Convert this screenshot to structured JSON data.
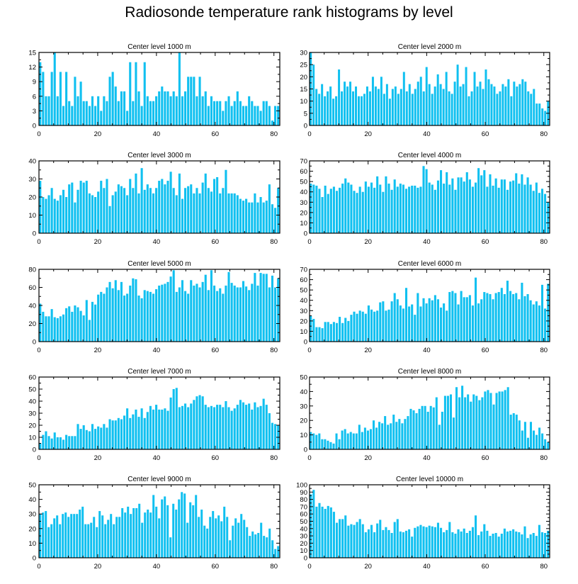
{
  "title": "Radiosonde temperature rank histograms by level",
  "colors": {
    "bar": "#10c0f0",
    "axis": "#000000",
    "background": "#ffffff"
  },
  "chart_data": [
    {
      "type": "bar",
      "title": "Center level 1000 m",
      "xlim": [
        0,
        82
      ],
      "ylim": [
        0,
        15
      ],
      "xticks": [
        0,
        20,
        40,
        60,
        80
      ],
      "yticks": [
        0,
        3,
        6,
        9,
        12,
        15
      ],
      "values": [
        13,
        11,
        6,
        6,
        11,
        15,
        6,
        11,
        4,
        11,
        5,
        4,
        10,
        6,
        9,
        5,
        5,
        4,
        6,
        4,
        6,
        3,
        6,
        5,
        10,
        11,
        8,
        5,
        7,
        7,
        3,
        13,
        5,
        13,
        7,
        4,
        13,
        6,
        5,
        5,
        6,
        7,
        8,
        7,
        7,
        6,
        7,
        6,
        15,
        6,
        7,
        10,
        10,
        10,
        6,
        10,
        6,
        7,
        4,
        6,
        5,
        5,
        5,
        3,
        5,
        6,
        4,
        5,
        7,
        5,
        4,
        4,
        6,
        5,
        4,
        4,
        3,
        5,
        5,
        4,
        1,
        4,
        4
      ]
    },
    {
      "type": "bar",
      "title": "Center level 2000 m",
      "xlim": [
        0,
        82
      ],
      "ylim": [
        0,
        30
      ],
      "xticks": [
        0,
        20,
        40,
        60,
        80
      ],
      "yticks": [
        0,
        5,
        10,
        15,
        20,
        25,
        30
      ],
      "values": [
        30,
        25,
        15,
        13,
        17,
        12,
        14,
        16,
        11,
        12,
        23,
        14,
        18,
        16,
        18,
        14,
        16,
        12,
        12,
        13,
        16,
        14,
        20,
        16,
        15,
        20,
        13,
        17,
        11,
        15,
        16,
        13,
        15,
        22,
        14,
        17,
        13,
        15,
        18,
        20,
        14,
        24,
        17,
        13,
        16,
        21,
        17,
        15,
        22,
        14,
        13,
        18,
        25,
        16,
        17,
        24,
        12,
        14,
        22,
        16,
        18,
        15,
        23,
        19,
        17,
        16,
        13,
        14,
        17,
        16,
        19,
        12,
        18,
        16,
        17,
        19,
        18,
        14,
        13,
        15,
        9,
        9,
        7,
        6,
        10
      ]
    },
    {
      "type": "bar",
      "title": "Center level 3000 m",
      "xlim": [
        0,
        82
      ],
      "ylim": [
        0,
        40
      ],
      "xticks": [
        0,
        20,
        40,
        60,
        80
      ],
      "yticks": [
        0,
        10,
        20,
        30,
        40
      ],
      "values": [
        29,
        20,
        19,
        21,
        25,
        19,
        18,
        21,
        24,
        20,
        27,
        28,
        17,
        24,
        29,
        28,
        29,
        22,
        21,
        20,
        23,
        29,
        25,
        30,
        15,
        21,
        23,
        27,
        26,
        25,
        21,
        30,
        25,
        33,
        22,
        36,
        24,
        27,
        25,
        22,
        25,
        29,
        30,
        27,
        29,
        34,
        25,
        21,
        33,
        19,
        25,
        26,
        27,
        22,
        25,
        22,
        28,
        33,
        25,
        23,
        30,
        31,
        22,
        25,
        35,
        22,
        22,
        22,
        21,
        19,
        18,
        19,
        17,
        17,
        22,
        17,
        20,
        17,
        18,
        27,
        16,
        14,
        25
      ]
    },
    {
      "type": "bar",
      "title": "Center level 4000 m",
      "xlim": [
        0,
        82
      ],
      "ylim": [
        0,
        70
      ],
      "xticks": [
        0,
        20,
        40,
        60,
        80
      ],
      "yticks": [
        0,
        10,
        20,
        30,
        40,
        50,
        60,
        70
      ],
      "values": [
        48,
        47,
        46,
        43,
        35,
        46,
        38,
        43,
        45,
        41,
        44,
        48,
        53,
        49,
        47,
        41,
        39,
        45,
        40,
        50,
        45,
        49,
        44,
        55,
        47,
        40,
        55,
        48,
        42,
        52,
        45,
        48,
        47,
        43,
        45,
        46,
        46,
        44,
        45,
        65,
        62,
        49,
        47,
        42,
        51,
        61,
        48,
        59,
        47,
        53,
        42,
        54,
        54,
        50,
        59,
        52,
        45,
        49,
        63,
        56,
        61,
        45,
        57,
        46,
        53,
        44,
        52,
        52,
        42,
        50,
        51,
        58,
        48,
        57,
        47,
        54,
        47,
        41,
        49,
        39,
        43,
        38,
        30
      ]
    },
    {
      "type": "bar",
      "title": "Center level 5000 m",
      "xlim": [
        0,
        82
      ],
      "ylim": [
        0,
        80
      ],
      "xticks": [
        0,
        20,
        40,
        60,
        80
      ],
      "yticks": [
        0,
        20,
        40,
        60,
        80
      ],
      "values": [
        42,
        33,
        28,
        28,
        36,
        27,
        26,
        28,
        30,
        37,
        39,
        33,
        40,
        38,
        34,
        29,
        46,
        24,
        44,
        41,
        52,
        55,
        53,
        60,
        66,
        59,
        68,
        57,
        66,
        51,
        53,
        62,
        70,
        69,
        51,
        48,
        57,
        56,
        55,
        53,
        58,
        62,
        63,
        64,
        66,
        72,
        79,
        55,
        60,
        68,
        56,
        53,
        68,
        62,
        64,
        60,
        66,
        74,
        57,
        79,
        62,
        56,
        59,
        53,
        62,
        77,
        65,
        62,
        60,
        60,
        67,
        61,
        57,
        64,
        76,
        62,
        76,
        75,
        75,
        60,
        73,
        60,
        70
      ]
    },
    {
      "type": "bar",
      "title": "Center level 6000 m",
      "xlim": [
        0,
        82
      ],
      "ylim": [
        0,
        70
      ],
      "xticks": [
        0,
        20,
        40,
        60,
        80
      ],
      "yticks": [
        0,
        10,
        20,
        30,
        40,
        50,
        60,
        70
      ],
      "values": [
        25,
        22,
        14,
        14,
        13,
        19,
        19,
        17,
        19,
        18,
        24,
        18,
        23,
        20,
        26,
        29,
        27,
        30,
        29,
        27,
        35,
        31,
        29,
        30,
        38,
        39,
        30,
        31,
        39,
        47,
        41,
        35,
        32,
        52,
        34,
        36,
        26,
        47,
        34,
        42,
        37,
        42,
        40,
        45,
        41,
        33,
        37,
        30,
        48,
        49,
        47,
        36,
        49,
        43,
        43,
        45,
        35,
        62,
        37,
        41,
        48,
        47,
        46,
        41,
        47,
        48,
        52,
        46,
        59,
        49,
        46,
        47,
        41,
        57,
        44,
        46,
        40,
        36,
        39,
        35,
        55,
        32,
        56
      ]
    },
    {
      "type": "bar",
      "title": "Center level 7000 m",
      "xlim": [
        0,
        82
      ],
      "ylim": [
        0,
        60
      ],
      "xticks": [
        0,
        20,
        40,
        60,
        80
      ],
      "yticks": [
        0,
        10,
        20,
        30,
        40,
        50,
        60
      ],
      "values": [
        5,
        12,
        15,
        11,
        9,
        14,
        10,
        10,
        8,
        12,
        11,
        11,
        11,
        21,
        17,
        20,
        16,
        15,
        21,
        17,
        19,
        18,
        21,
        18,
        25,
        24,
        24,
        26,
        25,
        28,
        34,
        26,
        29,
        33,
        27,
        34,
        26,
        31,
        36,
        33,
        37,
        33,
        33,
        34,
        32,
        43,
        50,
        51,
        35,
        36,
        38,
        35,
        38,
        41,
        44,
        45,
        44,
        37,
        35,
        36,
        35,
        37,
        37,
        35,
        40,
        35,
        32,
        34,
        37,
        41,
        39,
        37,
        38,
        33,
        39,
        35,
        36,
        42,
        37,
        30,
        22,
        21,
        20
      ]
    },
    {
      "type": "bar",
      "title": "Center level 8000 m",
      "xlim": [
        0,
        82
      ],
      "ylim": [
        0,
        50
      ],
      "xticks": [
        0,
        20,
        40,
        60,
        80
      ],
      "yticks": [
        0,
        10,
        20,
        30,
        40,
        50
      ],
      "values": [
        12,
        11,
        10,
        11,
        7,
        7,
        6,
        5,
        4,
        11,
        7,
        13,
        14,
        11,
        12,
        11,
        11,
        17,
        12,
        15,
        13,
        14,
        20,
        15,
        19,
        18,
        23,
        17,
        18,
        24,
        19,
        21,
        18,
        21,
        23,
        28,
        27,
        25,
        28,
        30,
        30,
        26,
        30,
        29,
        36,
        17,
        26,
        37,
        37,
        38,
        22,
        43,
        36,
        44,
        36,
        38,
        33,
        38,
        37,
        34,
        36,
        40,
        41,
        39,
        31,
        39,
        40,
        40,
        41,
        43,
        24,
        25,
        24,
        20,
        13,
        19,
        8,
        19,
        13,
        10,
        15,
        11,
        7,
        5
      ]
    },
    {
      "type": "bar",
      "title": "Center level 9000 m",
      "xlim": [
        0,
        82
      ],
      "ylim": [
        0,
        50
      ],
      "xticks": [
        0,
        20,
        40,
        60,
        80
      ],
      "yticks": [
        0,
        10,
        20,
        30,
        40,
        50
      ],
      "values": [
        30,
        31,
        32,
        21,
        23,
        27,
        29,
        23,
        30,
        31,
        28,
        30,
        30,
        30,
        33,
        35,
        23,
        23,
        24,
        28,
        21,
        32,
        29,
        23,
        26,
        30,
        23,
        28,
        28,
        34,
        31,
        35,
        30,
        34,
        34,
        37,
        24,
        31,
        33,
        31,
        43,
        35,
        27,
        40,
        42,
        36,
        14,
        37,
        33,
        40,
        45,
        44,
        24,
        38,
        36,
        43,
        28,
        33,
        22,
        20,
        28,
        32,
        27,
        29,
        25,
        35,
        28,
        12,
        22,
        27,
        24,
        30,
        26,
        21,
        15,
        18,
        16,
        17,
        24,
        15,
        14,
        20,
        12,
        6,
        8
      ]
    },
    {
      "type": "bar",
      "title": "Center level 10000 m",
      "xlim": [
        0,
        82
      ],
      "ylim": [
        0,
        100
      ],
      "xticks": [
        0,
        20,
        40,
        60,
        80
      ],
      "yticks": [
        0,
        10,
        20,
        30,
        40,
        50,
        60,
        70,
        80,
        90,
        100
      ],
      "values": [
        87,
        93,
        70,
        75,
        70,
        67,
        71,
        69,
        63,
        48,
        53,
        53,
        58,
        44,
        46,
        45,
        49,
        53,
        46,
        35,
        39,
        45,
        35,
        47,
        52,
        38,
        42,
        38,
        34,
        49,
        53,
        36,
        35,
        37,
        39,
        29,
        41,
        43,
        45,
        43,
        42,
        44,
        43,
        42,
        48,
        41,
        35,
        38,
        49,
        35,
        33,
        39,
        36,
        40,
        34,
        37,
        42,
        58,
        31,
        36,
        46,
        37,
        30,
        33,
        34,
        29,
        33,
        40,
        36,
        37,
        39,
        36,
        35,
        32,
        43,
        27,
        32,
        34,
        30,
        45,
        35,
        34,
        37
      ]
    }
  ]
}
